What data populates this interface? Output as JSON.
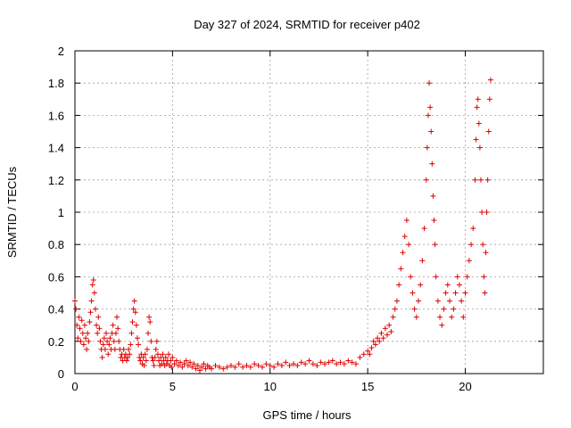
{
  "chart_data": {
    "type": "scatter",
    "title": "Day 327 of 2024, SRMTID for receiver p402",
    "xlabel": "GPS time / hours",
    "ylabel": "SRMTID / TECUs",
    "xlim": [
      0,
      24
    ],
    "ylim": [
      0,
      2
    ],
    "xticks": [
      0,
      5,
      10,
      15,
      20
    ],
    "xtick_labels": [
      "0",
      "5",
      "10",
      "15",
      "20"
    ],
    "yticks": [
      0,
      0.2,
      0.4,
      0.6,
      0.8,
      1,
      1.2,
      1.4,
      1.6,
      1.8,
      2
    ],
    "ytick_labels": [
      "0",
      "0.2",
      "0.4",
      "0.6",
      "0.8",
      "1",
      "1.2",
      "1.4",
      "1.6",
      "1.8",
      "2"
    ],
    "grid": true,
    "marker": "plus",
    "color": "#e00000",
    "series": [
      {
        "name": "SRMTID",
        "points": [
          [
            0.0,
            0.45
          ],
          [
            0.05,
            0.4
          ],
          [
            0.1,
            0.3
          ],
          [
            0.15,
            0.22
          ],
          [
            0.2,
            0.35
          ],
          [
            0.25,
            0.28
          ],
          [
            0.3,
            0.2
          ],
          [
            0.35,
            0.33
          ],
          [
            0.4,
            0.25
          ],
          [
            0.45,
            0.18
          ],
          [
            0.5,
            0.3
          ],
          [
            0.55,
            0.22
          ],
          [
            0.6,
            0.15
          ],
          [
            0.65,
            0.25
          ],
          [
            0.7,
            0.2
          ],
          [
            0.75,
            0.32
          ],
          [
            0.8,
            0.38
          ],
          [
            0.85,
            0.45
          ],
          [
            0.9,
            0.55
          ],
          [
            0.95,
            0.58
          ],
          [
            1.0,
            0.5
          ],
          [
            1.05,
            0.4
          ],
          [
            1.1,
            0.3
          ],
          [
            1.15,
            0.25
          ],
          [
            1.2,
            0.35
          ],
          [
            1.25,
            0.28
          ],
          [
            1.3,
            0.2
          ],
          [
            1.35,
            0.15
          ],
          [
            1.4,
            0.1
          ],
          [
            1.45,
            0.18
          ],
          [
            1.5,
            0.22
          ],
          [
            1.55,
            0.15
          ],
          [
            1.6,
            0.25
          ],
          [
            1.65,
            0.2
          ],
          [
            1.7,
            0.12
          ],
          [
            1.75,
            0.18
          ],
          [
            1.8,
            0.22
          ],
          [
            1.85,
            0.15
          ],
          [
            1.9,
            0.25
          ],
          [
            1.95,
            0.3
          ],
          [
            2.0,
            0.2
          ],
          [
            2.05,
            0.15
          ],
          [
            2.1,
            0.25
          ],
          [
            2.15,
            0.35
          ],
          [
            2.2,
            0.28
          ],
          [
            2.25,
            0.2
          ],
          [
            2.3,
            0.15
          ],
          [
            2.35,
            0.1
          ],
          [
            2.4,
            0.12
          ],
          [
            2.45,
            0.08
          ],
          [
            2.5,
            0.15
          ],
          [
            2.55,
            0.1
          ],
          [
            2.6,
            0.12
          ],
          [
            2.65,
            0.08
          ],
          [
            2.7,
            0.1
          ],
          [
            2.75,
            0.15
          ],
          [
            2.8,
            0.12
          ],
          [
            2.85,
            0.18
          ],
          [
            2.9,
            0.25
          ],
          [
            2.95,
            0.32
          ],
          [
            3.0,
            0.4
          ],
          [
            3.05,
            0.45
          ],
          [
            3.1,
            0.38
          ],
          [
            3.15,
            0.3
          ],
          [
            3.2,
            0.22
          ],
          [
            3.25,
            0.18
          ],
          [
            3.3,
            0.1
          ],
          [
            3.35,
            0.08
          ],
          [
            3.4,
            0.12
          ],
          [
            3.45,
            0.06
          ],
          [
            3.5,
            0.1
          ],
          [
            3.55,
            0.05
          ],
          [
            3.6,
            0.12
          ],
          [
            3.65,
            0.08
          ],
          [
            3.7,
            0.15
          ],
          [
            3.75,
            0.25
          ],
          [
            3.8,
            0.35
          ],
          [
            3.85,
            0.32
          ],
          [
            3.9,
            0.2
          ],
          [
            3.95,
            0.1
          ],
          [
            4.0,
            0.08
          ],
          [
            4.05,
            0.05
          ],
          [
            4.1,
            0.1
          ],
          [
            4.15,
            0.15
          ],
          [
            4.2,
            0.2
          ],
          [
            4.25,
            0.12
          ],
          [
            4.3,
            0.08
          ],
          [
            4.35,
            0.05
          ],
          [
            4.4,
            0.1
          ],
          [
            4.45,
            0.06
          ],
          [
            4.5,
            0.12
          ],
          [
            4.55,
            0.08
          ],
          [
            4.6,
            0.05
          ],
          [
            4.65,
            0.1
          ],
          [
            4.7,
            0.06
          ],
          [
            4.75,
            0.08
          ],
          [
            4.8,
            0.12
          ],
          [
            4.85,
            0.05
          ],
          [
            4.9,
            0.08
          ],
          [
            4.95,
            0.04
          ],
          [
            5.0,
            0.1
          ],
          [
            5.1,
            0.06
          ],
          [
            5.2,
            0.08
          ],
          [
            5.3,
            0.05
          ],
          [
            5.4,
            0.07
          ],
          [
            5.5,
            0.04
          ],
          [
            5.6,
            0.06
          ],
          [
            5.7,
            0.08
          ],
          [
            5.8,
            0.05
          ],
          [
            5.9,
            0.07
          ],
          [
            6.0,
            0.04
          ],
          [
            6.1,
            0.06
          ],
          [
            6.2,
            0.03
          ],
          [
            6.3,
            0.05
          ],
          [
            6.4,
            0.02
          ],
          [
            6.5,
            0.04
          ],
          [
            6.6,
            0.06
          ],
          [
            6.7,
            0.03
          ],
          [
            6.8,
            0.05
          ],
          [
            6.9,
            0.04
          ],
          [
            7.0,
            0.03
          ],
          [
            7.2,
            0.05
          ],
          [
            7.4,
            0.04
          ],
          [
            7.6,
            0.03
          ],
          [
            7.8,
            0.04
          ],
          [
            8.0,
            0.05
          ],
          [
            8.2,
            0.04
          ],
          [
            8.4,
            0.06
          ],
          [
            8.6,
            0.04
          ],
          [
            8.8,
            0.05
          ],
          [
            9.0,
            0.04
          ],
          [
            9.2,
            0.06
          ],
          [
            9.4,
            0.05
          ],
          [
            9.6,
            0.04
          ],
          [
            9.8,
            0.06
          ],
          [
            10.0,
            0.05
          ],
          [
            10.2,
            0.04
          ],
          [
            10.4,
            0.06
          ],
          [
            10.6,
            0.05
          ],
          [
            10.8,
            0.07
          ],
          [
            11.0,
            0.05
          ],
          [
            11.2,
            0.06
          ],
          [
            11.4,
            0.05
          ],
          [
            11.6,
            0.07
          ],
          [
            11.8,
            0.06
          ],
          [
            12.0,
            0.08
          ],
          [
            12.2,
            0.06
          ],
          [
            12.4,
            0.05
          ],
          [
            12.6,
            0.07
          ],
          [
            12.8,
            0.06
          ],
          [
            13.0,
            0.07
          ],
          [
            13.2,
            0.08
          ],
          [
            13.4,
            0.06
          ],
          [
            13.6,
            0.07
          ],
          [
            13.8,
            0.06
          ],
          [
            14.0,
            0.08
          ],
          [
            14.2,
            0.07
          ],
          [
            14.4,
            0.06
          ],
          [
            14.6,
            0.1
          ],
          [
            14.8,
            0.12
          ],
          [
            15.0,
            0.14
          ],
          [
            15.1,
            0.12
          ],
          [
            15.2,
            0.16
          ],
          [
            15.3,
            0.2
          ],
          [
            15.4,
            0.18
          ],
          [
            15.5,
            0.22
          ],
          [
            15.6,
            0.2
          ],
          [
            15.7,
            0.25
          ],
          [
            15.8,
            0.22
          ],
          [
            15.9,
            0.28
          ],
          [
            16.0,
            0.24
          ],
          [
            16.1,
            0.3
          ],
          [
            16.2,
            0.26
          ],
          [
            16.3,
            0.35
          ],
          [
            16.4,
            0.4
          ],
          [
            16.5,
            0.45
          ],
          [
            16.6,
            0.55
          ],
          [
            16.7,
            0.65
          ],
          [
            16.8,
            0.75
          ],
          [
            16.9,
            0.85
          ],
          [
            17.0,
            0.95
          ],
          [
            17.1,
            0.8
          ],
          [
            17.2,
            0.6
          ],
          [
            17.3,
            0.5
          ],
          [
            17.4,
            0.4
          ],
          [
            17.5,
            0.35
          ],
          [
            17.6,
            0.45
          ],
          [
            17.7,
            0.55
          ],
          [
            17.8,
            0.7
          ],
          [
            17.9,
            0.9
          ],
          [
            18.0,
            1.2
          ],
          [
            18.05,
            1.4
          ],
          [
            18.1,
            1.6
          ],
          [
            18.15,
            1.8
          ],
          [
            18.2,
            1.65
          ],
          [
            18.25,
            1.5
          ],
          [
            18.3,
            1.3
          ],
          [
            18.35,
            1.1
          ],
          [
            18.4,
            0.95
          ],
          [
            18.45,
            0.8
          ],
          [
            18.5,
            0.6
          ],
          [
            18.6,
            0.45
          ],
          [
            18.7,
            0.35
          ],
          [
            18.8,
            0.3
          ],
          [
            18.9,
            0.4
          ],
          [
            19.0,
            0.5
          ],
          [
            19.1,
            0.55
          ],
          [
            19.2,
            0.45
          ],
          [
            19.3,
            0.35
          ],
          [
            19.4,
            0.4
          ],
          [
            19.5,
            0.5
          ],
          [
            19.6,
            0.6
          ],
          [
            19.7,
            0.55
          ],
          [
            19.8,
            0.45
          ],
          [
            19.9,
            0.35
          ],
          [
            20.0,
            0.5
          ],
          [
            20.1,
            0.6
          ],
          [
            20.2,
            0.7
          ],
          [
            20.3,
            0.8
          ],
          [
            20.4,
            0.9
          ],
          [
            20.5,
            1.2
          ],
          [
            20.55,
            1.45
          ],
          [
            20.6,
            1.65
          ],
          [
            20.65,
            1.7
          ],
          [
            20.7,
            1.55
          ],
          [
            20.75,
            1.4
          ],
          [
            20.8,
            1.2
          ],
          [
            20.85,
            1.0
          ],
          [
            20.9,
            0.8
          ],
          [
            20.95,
            0.6
          ],
          [
            21.0,
            0.5
          ],
          [
            21.05,
            0.75
          ],
          [
            21.1,
            1.0
          ],
          [
            21.15,
            1.2
          ],
          [
            21.2,
            1.5
          ],
          [
            21.25,
            1.7
          ],
          [
            21.3,
            1.82
          ]
        ]
      }
    ]
  }
}
